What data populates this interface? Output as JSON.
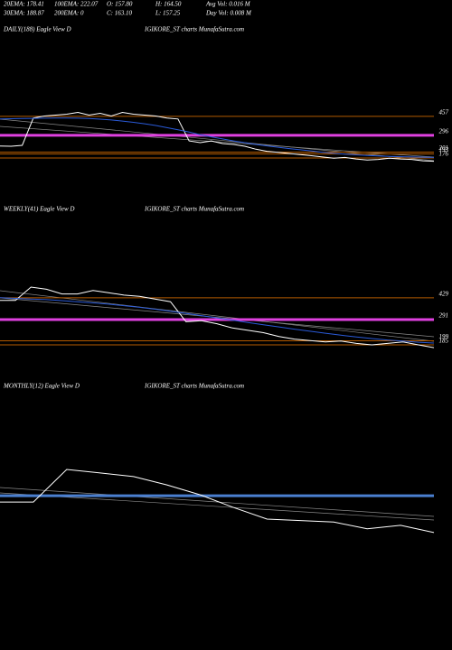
{
  "header": {
    "rows": [
      [
        "20EMA: 178.41",
        "100EMA: 222.07",
        "O: 157.80",
        "H: 164.50",
        "Avg Vol: 0.016 M"
      ],
      [
        "30EMA: 188.87",
        "200EMA: 0",
        "C: 163.10",
        "L: 157.25",
        "Day Vol: 0.008 M"
      ]
    ]
  },
  "chart_data": [
    {
      "type": "line",
      "title": "DAILY(188) Eagle View D",
      "subtitle": "IGIKORE_ST charts MunafaSutra.com",
      "log": true,
      "ylim": [
        140,
        560
      ],
      "levels": [
        {
          "value": 457,
          "color": "#b35a00",
          "width": 1
        },
        {
          "value": 296,
          "color": "#e040e0",
          "width": 3
        },
        {
          "value": 201,
          "color": "#b35a00",
          "width": 1
        },
        {
          "value": 193,
          "color": "#b35a00",
          "width": 1
        },
        {
          "value": 176,
          "color": "#b35a00",
          "width": 1
        }
      ],
      "series": [
        {
          "color": "#ffffff",
          "values": [
            231,
            230,
            235,
            440,
            460,
            470,
            480,
            500,
            470,
            490,
            460,
            500,
            480,
            470,
            460,
            440,
            430,
            260,
            250,
            260,
            245,
            240,
            230,
            215,
            205,
            200,
            195,
            190,
            185,
            180,
            175,
            178,
            172,
            168,
            170,
            175,
            172,
            170,
            165,
            163
          ]
        },
        {
          "color": "#2a5ad8",
          "values": [
            430,
            432,
            434,
            436,
            438,
            440,
            440,
            438,
            434,
            428,
            420,
            410,
            398,
            385,
            370,
            352,
            335,
            318,
            300,
            285,
            272,
            260,
            250,
            240,
            232,
            225,
            218,
            212,
            206,
            200,
            196,
            192,
            189,
            186,
            184,
            182,
            181,
            180,
            179,
            178
          ]
        }
      ]
    },
    {
      "type": "line",
      "title": "WEEKLY(41) Eagle View D",
      "subtitle": "IGIKORE_ST charts MunafaSutra.com",
      "log": true,
      "ylim": [
        150,
        695
      ],
      "levels": [
        {
          "value": 429,
          "color": "#b35a00",
          "width": 1
        },
        {
          "value": 291,
          "color": "#e040e0",
          "width": 3
        },
        {
          "value": 199,
          "color": "#b35a00",
          "width": 1
        },
        {
          "value": 185,
          "color": "#b35a00",
          "width": 1
        }
      ],
      "series": [
        {
          "color": "#ffffff",
          "values": [
            410,
            410,
            520,
            500,
            460,
            460,
            490,
            470,
            450,
            440,
            420,
            400,
            280,
            285,
            270,
            250,
            240,
            230,
            215,
            205,
            200,
            195,
            198,
            190,
            185,
            190,
            195,
            185,
            176
          ]
        },
        {
          "color": "#2a5ad8",
          "values": [
            430,
            425,
            420,
            415,
            408,
            400,
            392,
            383,
            373,
            362,
            350,
            338,
            325,
            312,
            300,
            288,
            276,
            265,
            255,
            245,
            236,
            228,
            220,
            213,
            207,
            202,
            198,
            194,
            191
          ]
        }
      ]
    },
    {
      "type": "line",
      "title": "MONTHLY(12) Eagle View D",
      "subtitle": "IGIKORE_ST charts MunafaSutra.com",
      "log": true,
      "ylim": [
        77,
        693
      ],
      "bands": [
        {
          "value": 260,
          "color": "#4a7fd0",
          "width": 3
        }
      ],
      "series": [
        {
          "color": "#ffffff",
          "values": [
            226,
            226,
            465,
            430,
            397,
            330,
            265,
            200,
            155,
            150,
            145,
            125,
            135,
            115
          ]
        }
      ]
    }
  ]
}
